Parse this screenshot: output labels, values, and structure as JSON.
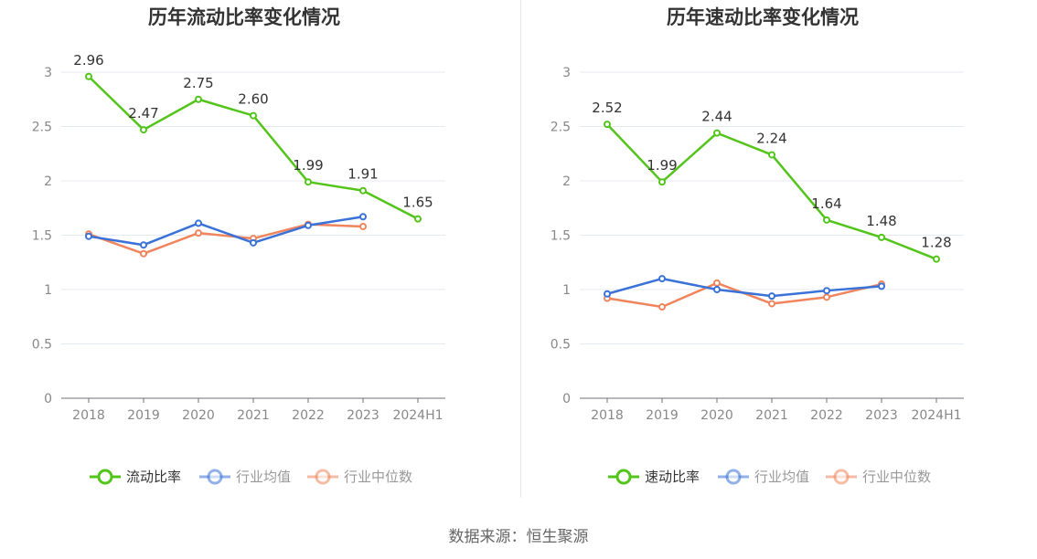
{
  "chart_data": [
    {
      "type": "line",
      "title": "历年流动比率变化情况",
      "categories": [
        "2018",
        "2019",
        "2020",
        "2021",
        "2022",
        "2023",
        "2024H1"
      ],
      "ylim": [
        0,
        3
      ],
      "yticks": [
        "0",
        "0.5",
        "1",
        "1.5",
        "2",
        "2.5",
        "3"
      ],
      "yticks_values": [
        0,
        0.5,
        1,
        1.5,
        2,
        2.5,
        3
      ],
      "grid": true,
      "legend_position": "bottom",
      "series": [
        {
          "name": "流动比率",
          "color": "#52c41a",
          "values": [
            2.96,
            2.47,
            2.75,
            2.6,
            1.99,
            1.91,
            1.65
          ],
          "labels": [
            "2.96",
            "2.47",
            "2.75",
            "2.60",
            "1.99",
            "1.91",
            "1.65"
          ]
        },
        {
          "name": "行业均值",
          "color": "#3a72d8",
          "values": [
            1.49,
            1.41,
            1.61,
            1.43,
            1.59,
            1.67,
            null
          ]
        },
        {
          "name": "行业中位数",
          "color": "#f0845c",
          "values": [
            1.51,
            1.33,
            1.52,
            1.47,
            1.6,
            1.58,
            null
          ]
        }
      ]
    },
    {
      "type": "line",
      "title": "历年速动比率变化情况",
      "categories": [
        "2018",
        "2019",
        "2020",
        "2021",
        "2022",
        "2023",
        "2024H1"
      ],
      "ylim": [
        0,
        3
      ],
      "yticks": [
        "0",
        "0.5",
        "1",
        "1.5",
        "2",
        "2.5",
        "3"
      ],
      "yticks_values": [
        0,
        0.5,
        1,
        1.5,
        2,
        2.5,
        3
      ],
      "grid": true,
      "legend_position": "bottom",
      "series": [
        {
          "name": "速动比率",
          "color": "#52c41a",
          "values": [
            2.52,
            1.99,
            2.44,
            2.24,
            1.64,
            1.48,
            1.28
          ],
          "labels": [
            "2.52",
            "1.99",
            "2.44",
            "2.24",
            "1.64",
            "1.48",
            "1.28"
          ]
        },
        {
          "name": "行业均值",
          "color": "#3a72d8",
          "values": [
            0.96,
            1.1,
            1.0,
            0.94,
            0.99,
            1.03,
            null
          ]
        },
        {
          "name": "行业中位数",
          "color": "#f0845c",
          "values": [
            0.92,
            0.84,
            1.06,
            0.87,
            0.93,
            1.05,
            null
          ]
        }
      ]
    }
  ],
  "footer": {
    "source": "数据来源：恒生聚源"
  }
}
